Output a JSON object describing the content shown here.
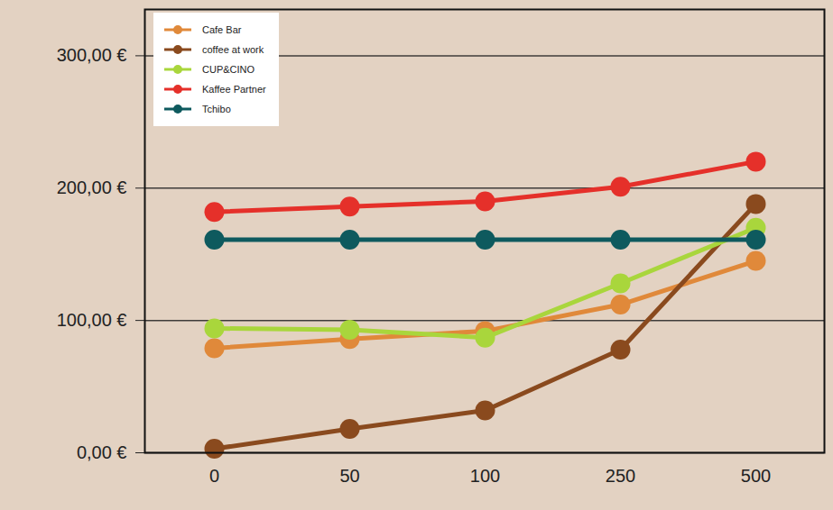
{
  "chart_data": {
    "type": "line",
    "categories": [
      0,
      50,
      100,
      250,
      500
    ],
    "series": [
      {
        "name": "Cafe Bar",
        "color": "#e0893a",
        "values": [
          79,
          86,
          92,
          112,
          145
        ]
      },
      {
        "name": "coffee at work",
        "color": "#8a4a1e",
        "values": [
          3,
          18,
          32,
          78,
          188
        ]
      },
      {
        "name": "CUP&CINO",
        "color": "#a9d63c",
        "values": [
          94,
          93,
          87,
          128,
          170
        ]
      },
      {
        "name": "Kaffee Partner",
        "color": "#e5302a",
        "values": [
          182,
          186,
          190,
          201,
          220
        ]
      },
      {
        "name": "Tchibo",
        "color": "#0e5a5e",
        "values": [
          161,
          161,
          161,
          161,
          161
        ]
      }
    ],
    "ylim": [
      0,
      335
    ],
    "yticks": [
      {
        "value": 0,
        "label": "0,00 €"
      },
      {
        "value": 100,
        "label": "100,00 €"
      },
      {
        "value": 200,
        "label": "200,00 €"
      },
      {
        "value": 300,
        "label": "300,00 €"
      }
    ],
    "grid": true,
    "legend": "top-left",
    "marker": "circle"
  }
}
